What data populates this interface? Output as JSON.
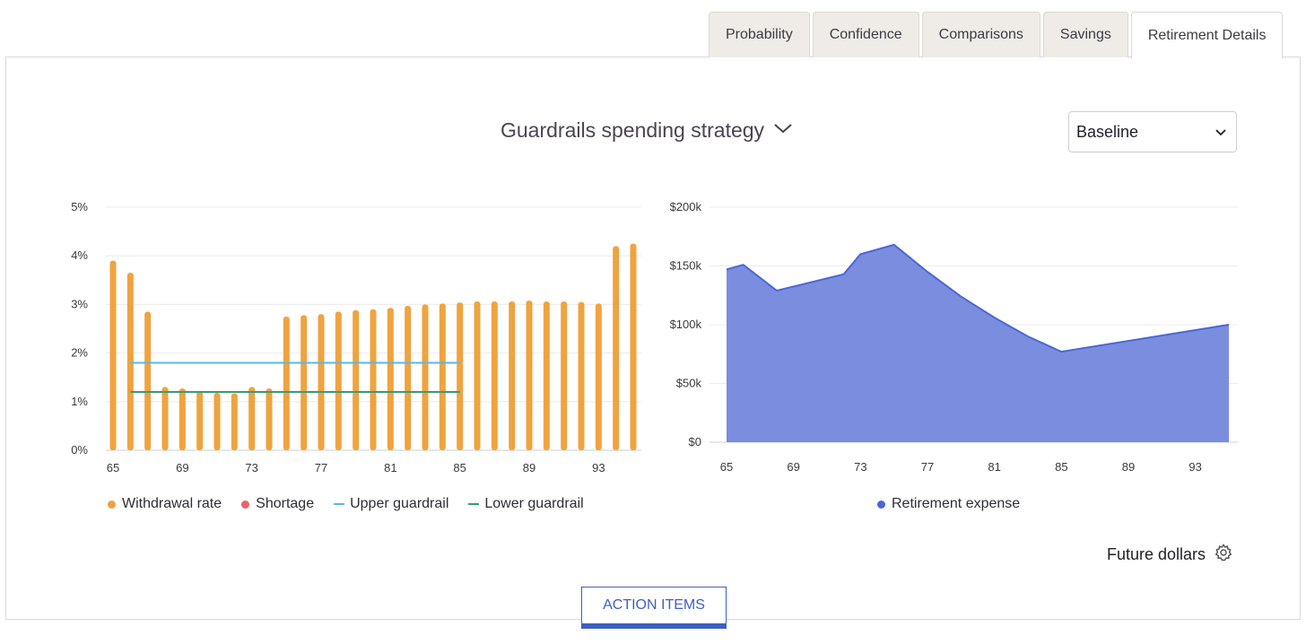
{
  "tabs": [
    "Probability",
    "Confidence",
    "Comparisons",
    "Savings",
    "Retirement Details"
  ],
  "active_tab": "Retirement Details",
  "strategy": {
    "label": "Guardrails spending strategy"
  },
  "scenario": {
    "selected": "Baseline"
  },
  "legend_left": {
    "withdrawal": "Withdrawal rate",
    "shortage": "Shortage",
    "upper": "Upper guardrail",
    "lower": "Lower guardrail"
  },
  "legend_right": {
    "expense": "Retirement expense"
  },
  "future_label": "Future dollars",
  "action_label": "ACTION ITEMS",
  "colors": {
    "withdrawal": "#f0a33e",
    "shortage": "#e8636a",
    "upper": "#57b9e6",
    "lower": "#3a9a78",
    "expense": "#4c67d2",
    "expense_fill": "#7a8ddf"
  },
  "chart_data": [
    {
      "type": "bar",
      "x": [
        65,
        66,
        67,
        68,
        69,
        70,
        71,
        72,
        73,
        74,
        75,
        76,
        77,
        78,
        79,
        80,
        81,
        82,
        83,
        84,
        85,
        86,
        87,
        88,
        89,
        90,
        91,
        92,
        93,
        94,
        95
      ],
      "xticks": [
        "65",
        "69",
        "73",
        "77",
        "81",
        "85",
        "89",
        "93"
      ],
      "series": [
        {
          "name": "Withdrawal rate",
          "values": [
            3.9,
            3.65,
            2.85,
            1.3,
            1.27,
            1.22,
            1.18,
            1.17,
            1.3,
            1.27,
            2.75,
            2.78,
            2.8,
            2.85,
            2.88,
            2.9,
            2.93,
            2.97,
            3.0,
            3.02,
            3.04,
            3.06,
            3.06,
            3.06,
            3.08,
            3.06,
            3.06,
            3.05,
            3.02,
            4.2,
            4.25
          ]
        },
        {
          "name": "Upper guardrail",
          "type": "line",
          "x": [
            66,
            85
          ],
          "values": [
            1.8,
            1.8
          ]
        },
        {
          "name": "Lower guardrail",
          "type": "line",
          "x": [
            66,
            85
          ],
          "values": [
            1.2,
            1.2
          ]
        }
      ],
      "yticks": [
        "0%",
        "1%",
        "2%",
        "3%",
        "4%",
        "5%"
      ],
      "ylim": [
        0,
        5
      ],
      "grid": true,
      "legend": "bottom"
    },
    {
      "type": "area",
      "x": [
        65,
        66,
        68,
        72,
        73,
        75,
        77,
        79,
        81,
        83,
        85,
        95
      ],
      "xticks": [
        "65",
        "69",
        "73",
        "77",
        "81",
        "85",
        "89",
        "93"
      ],
      "series": [
        {
          "name": "Retirement expense",
          "values": [
            147000,
            151000,
            129000,
            143000,
            160000,
            168000,
            145000,
            124000,
            106000,
            90000,
            77000,
            100000
          ]
        }
      ],
      "yticks": [
        "$0",
        "$50k",
        "$100k",
        "$150k",
        "$200k"
      ],
      "ylim": [
        0,
        200000
      ],
      "grid": true,
      "legend": "bottom"
    }
  ]
}
